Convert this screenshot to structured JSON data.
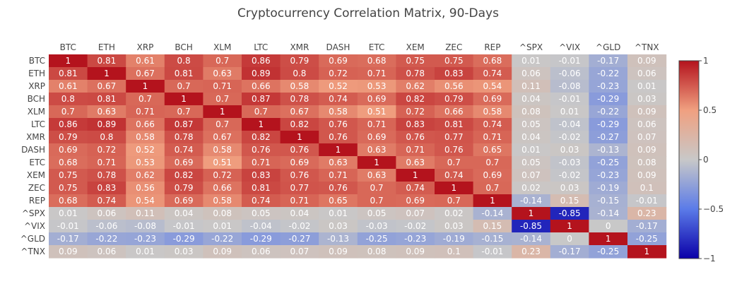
{
  "chart_data": {
    "type": "heatmap",
    "title": "Cryptocurrency Correlation Matrix, 90-Days",
    "x": [
      "BTC",
      "ETH",
      "XRP",
      "BCH",
      "XLM",
      "LTC",
      "XMR",
      "DASH",
      "ETC",
      "XEM",
      "ZEC",
      "REP",
      "^SPX",
      "^VIX",
      "^GLD",
      "^TNX"
    ],
    "y": [
      "BTC",
      "ETH",
      "XRP",
      "BCH",
      "XLM",
      "LTC",
      "XMR",
      "DASH",
      "ETC",
      "XEM",
      "ZEC",
      "REP",
      "^SPX",
      "^VIX",
      "^GLD",
      "^TNX"
    ],
    "z": [
      [
        "1",
        "0.81",
        "0.61",
        "0.8",
        "0.7",
        "0.86",
        "0.79",
        "0.69",
        "0.68",
        "0.75",
        "0.75",
        "0.68",
        "0.01",
        "-0.01",
        "-0.17",
        "0.09"
      ],
      [
        "0.81",
        "1",
        "0.67",
        "0.81",
        "0.63",
        "0.89",
        "0.8",
        "0.72",
        "0.71",
        "0.78",
        "0.83",
        "0.74",
        "0.06",
        "-0.06",
        "-0.22",
        "0.06"
      ],
      [
        "0.61",
        "0.67",
        "1",
        "0.7",
        "0.71",
        "0.66",
        "0.58",
        "0.52",
        "0.53",
        "0.62",
        "0.56",
        "0.54",
        "0.11",
        "-0.08",
        "-0.23",
        "0.01"
      ],
      [
        "0.8",
        "0.81",
        "0.7",
        "1",
        "0.7",
        "0.87",
        "0.78",
        "0.74",
        "0.69",
        "0.82",
        "0.79",
        "0.69",
        "0.04",
        "-0.01",
        "-0.29",
        "0.03"
      ],
      [
        "0.7",
        "0.63",
        "0.71",
        "0.7",
        "1",
        "0.7",
        "0.67",
        "0.58",
        "0.51",
        "0.72",
        "0.66",
        "0.58",
        "0.08",
        "0.01",
        "-0.22",
        "0.09"
      ],
      [
        "0.86",
        "0.89",
        "0.66",
        "0.87",
        "0.7",
        "1",
        "0.82",
        "0.76",
        "0.71",
        "0.83",
        "0.81",
        "0.74",
        "0.05",
        "-0.04",
        "-0.29",
        "0.06"
      ],
      [
        "0.79",
        "0.8",
        "0.58",
        "0.78",
        "0.67",
        "0.82",
        "1",
        "0.76",
        "0.69",
        "0.76",
        "0.77",
        "0.71",
        "0.04",
        "-0.02",
        "-0.27",
        "0.07"
      ],
      [
        "0.69",
        "0.72",
        "0.52",
        "0.74",
        "0.58",
        "0.76",
        "0.76",
        "1",
        "0.63",
        "0.71",
        "0.76",
        "0.65",
        "0.01",
        "0.03",
        "-0.13",
        "0.09"
      ],
      [
        "0.68",
        "0.71",
        "0.53",
        "0.69",
        "0.51",
        "0.71",
        "0.69",
        "0.63",
        "1",
        "0.63",
        "0.7",
        "0.7",
        "0.05",
        "-0.03",
        "-0.25",
        "0.08"
      ],
      [
        "0.75",
        "0.78",
        "0.62",
        "0.82",
        "0.72",
        "0.83",
        "0.76",
        "0.71",
        "0.63",
        "1",
        "0.74",
        "0.69",
        "0.07",
        "-0.02",
        "-0.23",
        "0.09"
      ],
      [
        "0.75",
        "0.83",
        "0.56",
        "0.79",
        "0.66",
        "0.81",
        "0.77",
        "0.76",
        "0.7",
        "0.74",
        "1",
        "0.7",
        "0.02",
        "0.03",
        "-0.19",
        "0.1"
      ],
      [
        "0.68",
        "0.74",
        "0.54",
        "0.69",
        "0.58",
        "0.74",
        "0.71",
        "0.65",
        "0.7",
        "0.69",
        "0.7",
        "1",
        "-0.14",
        "0.15",
        "-0.15",
        "-0.01"
      ],
      [
        "0.01",
        "0.06",
        "0.11",
        "0.04",
        "0.08",
        "0.05",
        "0.04",
        "0.01",
        "0.05",
        "0.07",
        "0.02",
        "-0.14",
        "1",
        "-0.85",
        "-0.14",
        "0.23"
      ],
      [
        "-0.01",
        "-0.06",
        "-0.08",
        "-0.01",
        "0.01",
        "-0.04",
        "-0.02",
        "0.03",
        "-0.03",
        "-0.02",
        "0.03",
        "0.15",
        "-0.85",
        "1",
        "0",
        "-0.17"
      ],
      [
        "-0.17",
        "-0.22",
        "-0.23",
        "-0.29",
        "-0.22",
        "-0.29",
        "-0.27",
        "-0.13",
        "-0.25",
        "-0.23",
        "-0.19",
        "-0.15",
        "-0.14",
        "0",
        "1",
        "-0.25"
      ],
      [
        "0.09",
        "0.06",
        "0.01",
        "0.03",
        "0.09",
        "0.06",
        "0.07",
        "0.09",
        "0.08",
        "0.09",
        "0.1",
        "-0.01",
        "0.23",
        "-0.17",
        "-0.25",
        "1"
      ]
    ],
    "zmin": -1,
    "zmax": 1,
    "colorscale": [
      "#0a00a8",
      "#5b7be8",
      "#c8c8c8",
      "#f0a080",
      "#b4131d"
    ],
    "colorbar": {
      "ticks": [
        "1",
        "0.5",
        "0",
        "−0.5",
        "−1"
      ],
      "tick_values": [
        1,
        0.5,
        0,
        -0.5,
        -1
      ]
    },
    "xaxis_side": "top",
    "grid": false
  }
}
